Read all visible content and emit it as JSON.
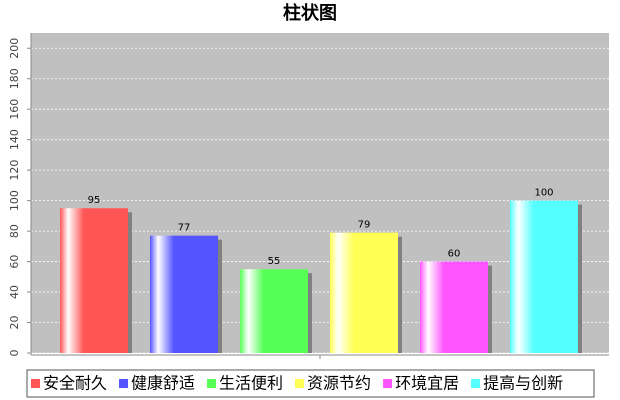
{
  "chart_data": {
    "type": "bar",
    "title": "柱状图",
    "categories": [
      null
    ],
    "series": [
      {
        "name": "安全耐久",
        "color": "#ff5555",
        "values": [
          95
        ]
      },
      {
        "name": "健康舒适",
        "color": "#5555ff",
        "values": [
          77
        ]
      },
      {
        "name": "生活便利",
        "color": "#55ff55",
        "values": [
          55
        ]
      },
      {
        "name": "资源节约",
        "color": "#ffff55",
        "values": [
          79
        ]
      },
      {
        "name": "环境宜居",
        "color": "#ff55ff",
        "values": [
          60
        ]
      },
      {
        "name": "提高与创新",
        "color": "#55ffff",
        "values": [
          100
        ]
      }
    ],
    "ylim": [
      0,
      210
    ],
    "yticks": [
      0,
      20,
      40,
      60,
      80,
      100,
      120,
      140,
      160,
      180,
      200
    ],
    "grid": true
  }
}
